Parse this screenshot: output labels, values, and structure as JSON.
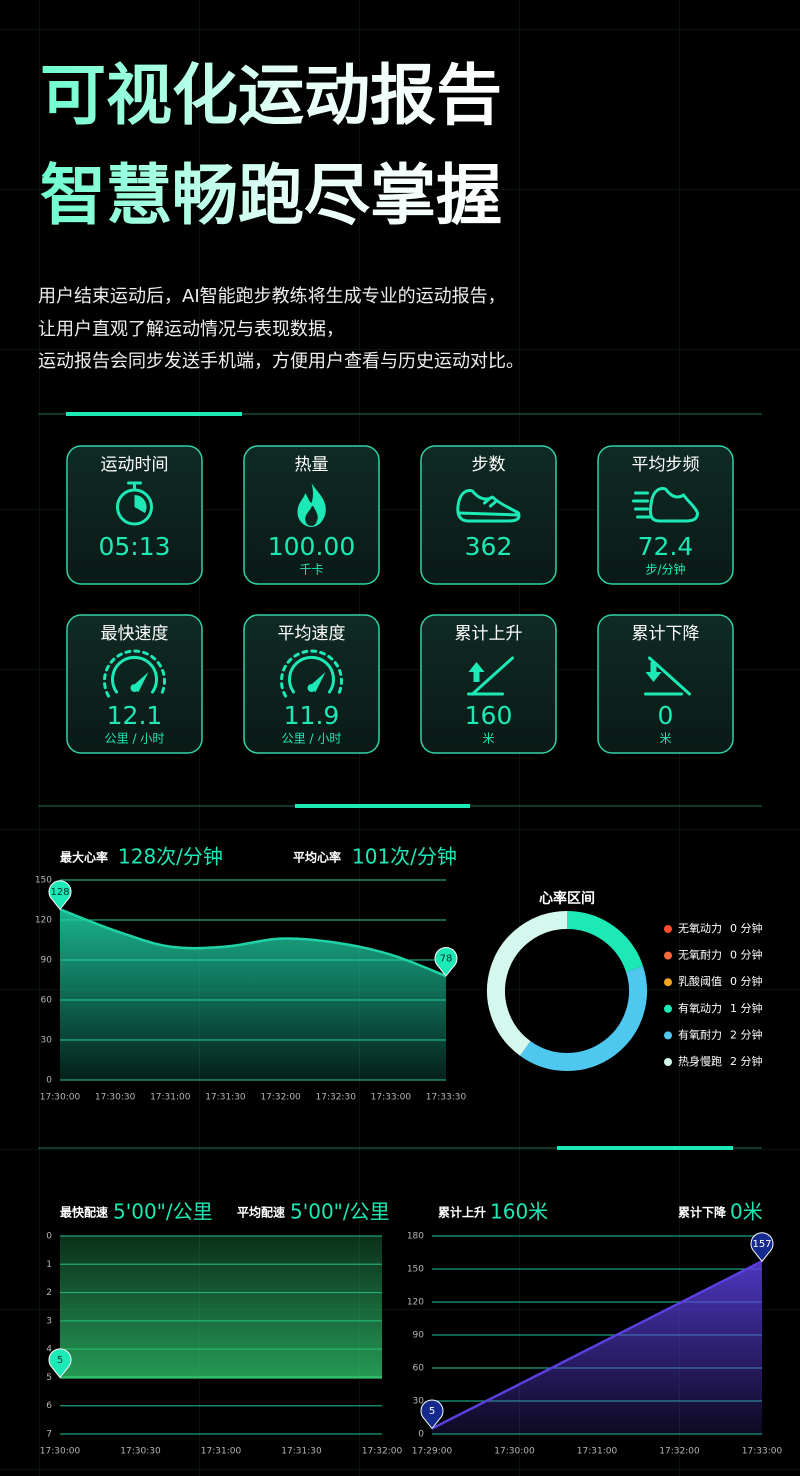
{
  "header": {
    "title_lines": [
      "可视化运动报告",
      "智慧畅跑尽掌握"
    ],
    "description_lines": [
      "用户结束运动后，AI智能跑步教练将生成专业的运动报告，",
      "让用户直观了解运动情况与表现数据，",
      "运动报告会同步发送手机端，方便用户查看与历史运动对比。"
    ]
  },
  "stats": [
    {
      "label": "运动时间",
      "value": "05:13"
    },
    {
      "label": "热量",
      "value": "100.00",
      "unit": "千卡"
    },
    {
      "label": "步数",
      "value": "362"
    },
    {
      "label": "平均步频",
      "value": "72.4",
      "unit": "步/分钟"
    },
    {
      "label": "最快速度",
      "value": "12.1",
      "unit": "公里 / 小时"
    },
    {
      "label": "平均速度",
      "value": "11.9",
      "unit": "公里 / 小时"
    },
    {
      "label": "累计上升",
      "value": "160",
      "unit": "米"
    },
    {
      "label": "累计下降",
      "value": "0",
      "unit": "米"
    }
  ],
  "chart_data": [
    {
      "type": "area",
      "annotations": [
        {
          "label": "最大心率",
          "value": "128次/分钟"
        },
        {
          "label": "平均心率",
          "value": "101次/分钟"
        }
      ],
      "categories": [
        "17:30:00",
        "17:30:30",
        "17:31:00",
        "17:31:30",
        "17:32:00",
        "17:32:30",
        "17:33:00",
        "17:33:30"
      ],
      "values": [
        128,
        112,
        100,
        100,
        106,
        103,
        94,
        78
      ],
      "ylim": [
        0,
        150
      ],
      "yticks": [
        0,
        30,
        60,
        90,
        120,
        150
      ],
      "color": "#1fd3a6"
    },
    {
      "type": "donut",
      "title": "心率区间",
      "categories": [
        "无氧动力",
        "无氧耐力",
        "乳酸阈值",
        "有氧动力",
        "有氧耐力",
        "热身慢跑"
      ],
      "values": [
        0,
        0,
        0,
        1,
        2,
        2
      ],
      "value_labels": [
        "0 分钟",
        "0 分钟",
        "0 分钟",
        "1 分钟",
        "2 分钟",
        "2 分钟"
      ],
      "colors": [
        "#ff4d2e",
        "#ff6a3d",
        "#f5a623",
        "#1de9b6",
        "#4fc8f0",
        "#d4f7ee"
      ]
    },
    {
      "type": "area",
      "annotations": [
        {
          "label": "最快配速",
          "value": "5'00\"/公里"
        },
        {
          "label": "平均配速",
          "value": "5'00\"/公里"
        }
      ],
      "categories": [
        "17:30:00",
        "17:30:30",
        "17:31:00",
        "17:31:30",
        "17:32:00"
      ],
      "values": [
        5,
        5,
        5,
        5,
        5
      ],
      "ylim": [
        7,
        0
      ],
      "yticks": [
        0,
        1,
        2,
        3,
        4,
        5,
        6,
        7
      ],
      "color": "#2fbf6a"
    },
    {
      "type": "area",
      "annotations": [
        {
          "label": "累计上升",
          "value": "160米"
        },
        {
          "label": "累计下降",
          "value": "0米"
        }
      ],
      "categories": [
        "17:29:00",
        "17:30:00",
        "17:31:00",
        "17:32:00",
        "17:33:00"
      ],
      "values": [
        5,
        43,
        81,
        119,
        157
      ],
      "ylim": [
        0,
        180
      ],
      "yticks": [
        0,
        30,
        60,
        90,
        120,
        150,
        180
      ],
      "color": "#5b3fe0"
    }
  ]
}
